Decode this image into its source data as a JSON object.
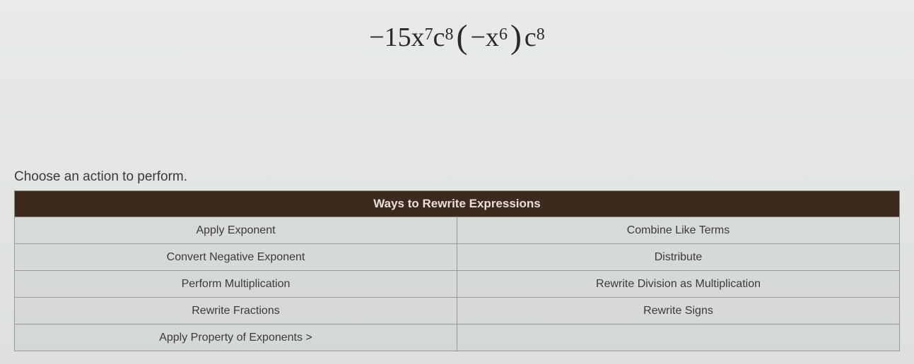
{
  "expression": {
    "coef1": "−15x",
    "exp1": "7",
    "var2": "c",
    "exp2": "8",
    "paren_open": "(",
    "neg": " −x",
    "exp3": "6",
    "paren_close": ")",
    "var3": " c",
    "exp4": "8"
  },
  "prompt": "Choose an action to perform.",
  "table": {
    "header": "Ways to Rewrite Expressions",
    "rows": [
      {
        "left": "Apply Exponent",
        "right": "Combine Like Terms"
      },
      {
        "left": "Convert Negative Exponent",
        "right": "Distribute"
      },
      {
        "left": "Perform Multiplication",
        "right": "Rewrite Division as Multiplication"
      },
      {
        "left": "Rewrite Fractions",
        "right": "Rewrite Signs"
      },
      {
        "left": "Apply Property of Exponents >",
        "right": ""
      }
    ]
  }
}
